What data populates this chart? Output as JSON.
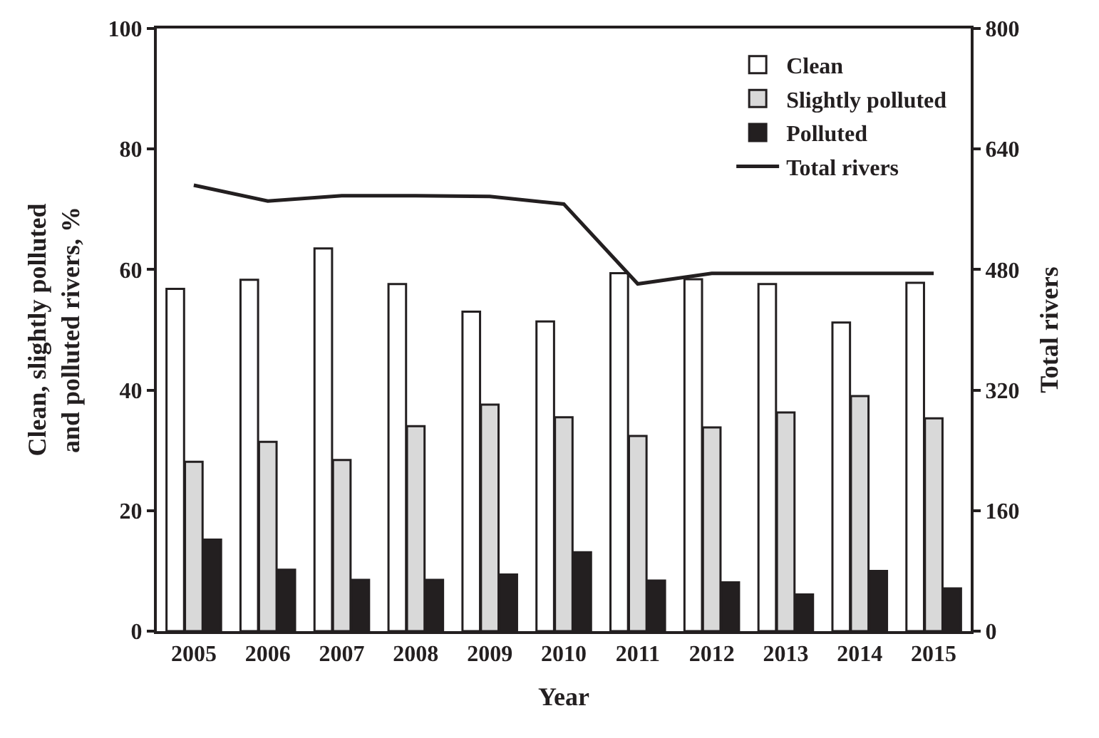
{
  "chart_data": {
    "type": "bar",
    "xlabel": "Year",
    "ylabel": "Clean, slightly polluted\nand polluted rivers, %",
    "y2label": "Total rivers",
    "categories": [
      "2005",
      "2006",
      "2007",
      "2008",
      "2009",
      "2010",
      "2011",
      "2012",
      "2013",
      "2014",
      "2015"
    ],
    "series": [
      {
        "name": "Clean",
        "color": "#ffffff",
        "values": [
          56.8,
          58.3,
          63.5,
          57.6,
          53.0,
          51.4,
          59.4,
          58.4,
          57.6,
          51.2,
          57.8
        ]
      },
      {
        "name": "Slightly polluted",
        "color": "#d9d9d9",
        "values": [
          28.1,
          31.4,
          28.4,
          34.0,
          37.6,
          35.5,
          32.4,
          33.8,
          36.3,
          39.0,
          35.3
        ]
      },
      {
        "name": "Polluted",
        "color": "#231f20",
        "values": [
          15.2,
          10.2,
          8.5,
          8.5,
          9.4,
          13.1,
          8.4,
          8.1,
          6.1,
          10.0,
          7.1
        ]
      },
      {
        "name": "Total rivers",
        "type": "line",
        "axis": "y2",
        "color": "#231f20",
        "values": [
          592,
          571,
          578,
          578,
          577,
          567,
          461,
          475,
          475,
          475,
          475
        ]
      }
    ],
    "ylim": [
      0,
      100
    ],
    "yticks": [
      0,
      20,
      40,
      60,
      80,
      100
    ],
    "y2lim": [
      0,
      800
    ],
    "y2ticks": [
      0,
      160,
      320,
      480,
      640,
      800
    ],
    "legend": "top right",
    "marker": "none",
    "line_style": "solid"
  }
}
